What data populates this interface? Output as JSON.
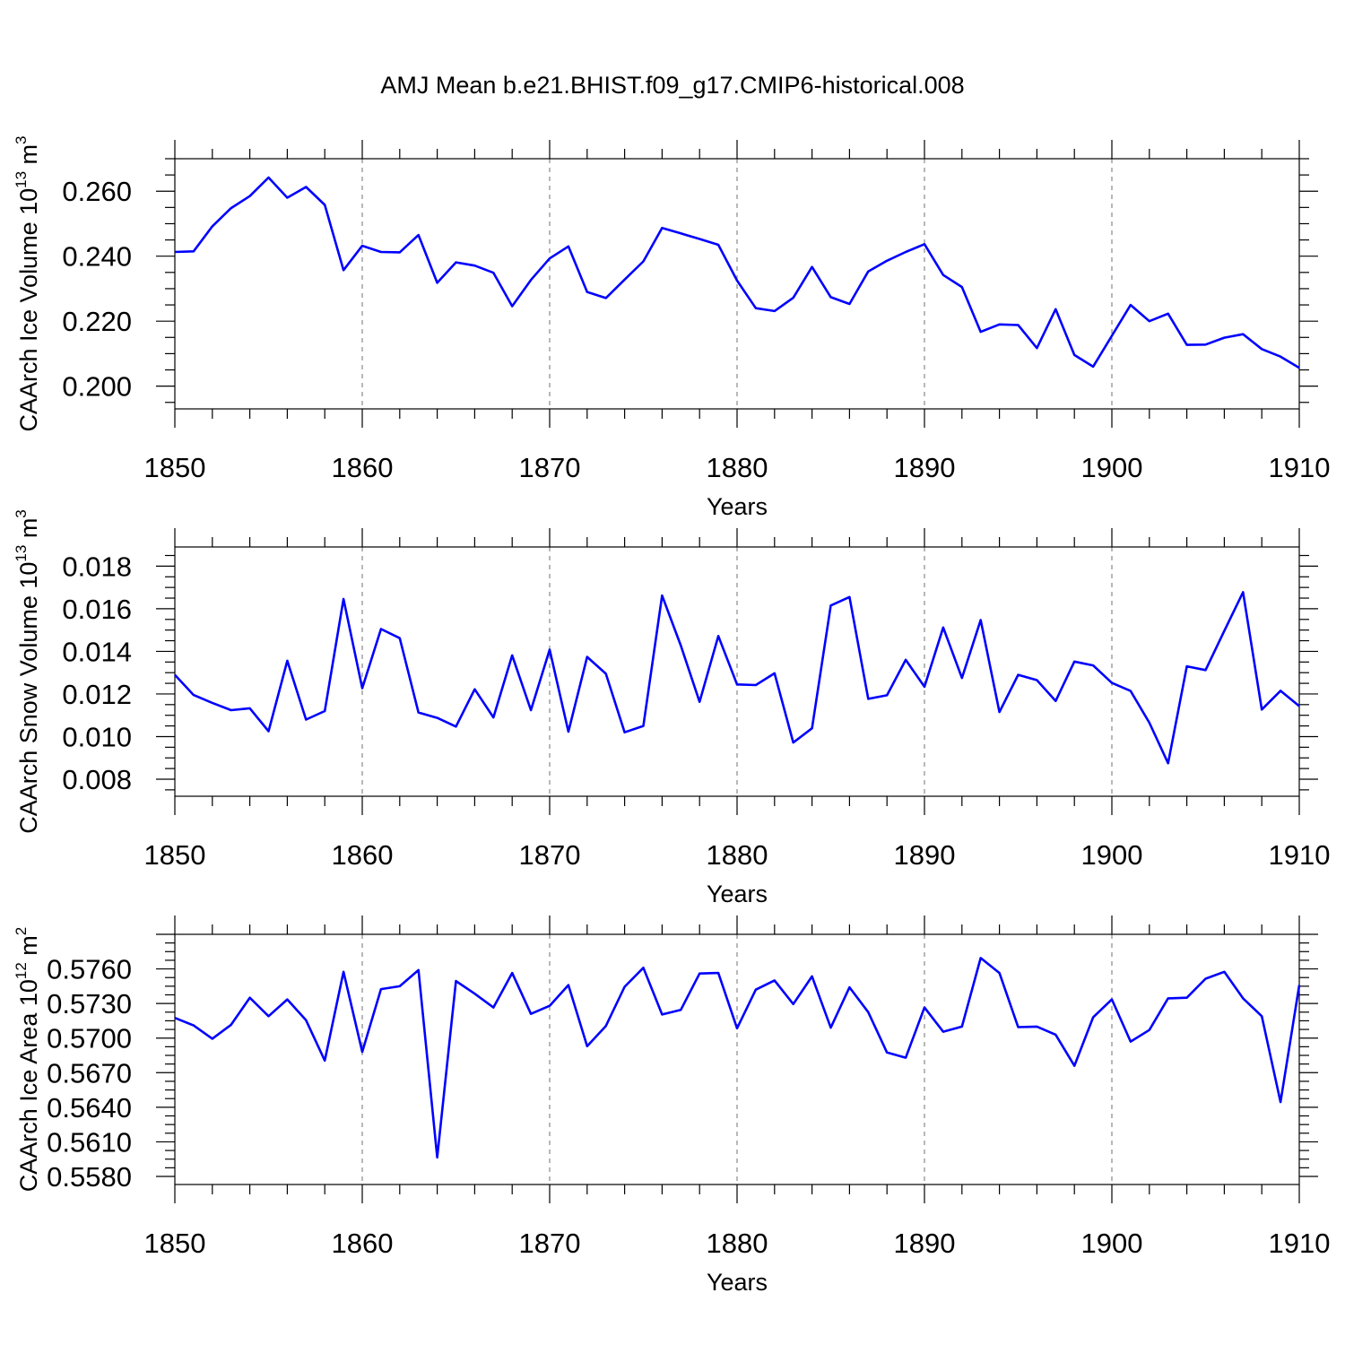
{
  "title": "AMJ Mean b.e21.BHIST.f09_g17.CMIP6-historical.008",
  "colors": {
    "series": "#0000ff",
    "grid": "#888888",
    "frame": "#000000"
  },
  "chart_data": [
    {
      "type": "line",
      "ylabel": {
        "main": "CAArch Ice Volume 10",
        "exp": "13",
        "unit": " m",
        "unit_exp": "3"
      },
      "xlabel": "Years",
      "xlim": [
        1850,
        1910
      ],
      "ylim": [
        0.193,
        0.27
      ],
      "yticks": [
        0.2,
        0.22,
        0.24,
        0.26
      ],
      "ytick_labels": [
        "0.200",
        "0.220",
        "0.240",
        "0.260"
      ],
      "xticks": [
        1850,
        1860,
        1870,
        1880,
        1890,
        1900,
        1910
      ],
      "xtick_labels": [
        "1850",
        "1860",
        "1870",
        "1880",
        "1890",
        "1900",
        "1910"
      ],
      "grid_x": [
        1860,
        1870,
        1880,
        1890,
        1900
      ],
      "x": [
        1850,
        1851,
        1852,
        1853,
        1854,
        1855,
        1856,
        1857,
        1858,
        1859,
        1860,
        1861,
        1862,
        1863,
        1864,
        1865,
        1866,
        1867,
        1868,
        1869,
        1870,
        1871,
        1872,
        1873,
        1874,
        1875,
        1876,
        1877,
        1878,
        1879,
        1880,
        1881,
        1882,
        1883,
        1884,
        1885,
        1886,
        1887,
        1888,
        1889,
        1890,
        1891,
        1892,
        1893,
        1894,
        1895,
        1896,
        1897,
        1898,
        1899,
        1900,
        1901,
        1902,
        1903,
        1904,
        1905,
        1906,
        1907,
        1908,
        1909,
        1910
      ],
      "y": [
        0.2413,
        0.2415,
        0.2492,
        0.2548,
        0.2585,
        0.2642,
        0.258,
        0.2613,
        0.2558,
        0.2357,
        0.2432,
        0.2413,
        0.2412,
        0.2465,
        0.2318,
        0.2381,
        0.2371,
        0.2349,
        0.2246,
        0.2327,
        0.2393,
        0.243,
        0.229,
        0.2271,
        0.2328,
        0.2384,
        0.2487,
        0.247,
        0.2453,
        0.2435,
        0.2325,
        0.224,
        0.2231,
        0.2272,
        0.2367,
        0.2274,
        0.2253,
        0.2353,
        0.2386,
        0.2413,
        0.2437,
        0.2342,
        0.2305,
        0.2167,
        0.219,
        0.2188,
        0.2117,
        0.2237,
        0.2096,
        0.206,
        0.2155,
        0.225,
        0.22,
        0.2223,
        0.2127,
        0.2128,
        0.2149,
        0.216,
        0.2114,
        0.2091,
        0.2056
      ]
    },
    {
      "type": "line",
      "ylabel": {
        "main": "CAArch Snow Volume 10",
        "exp": "13",
        "unit": " m",
        "unit_exp": "3"
      },
      "xlabel": "Years",
      "xlim": [
        1850,
        1910
      ],
      "ylim": [
        0.0072,
        0.0189
      ],
      "yticks": [
        0.008,
        0.01,
        0.012,
        0.014,
        0.016,
        0.018
      ],
      "ytick_labels": [
        "0.008",
        "0.010",
        "0.012",
        "0.014",
        "0.016",
        "0.018"
      ],
      "xticks": [
        1850,
        1860,
        1870,
        1880,
        1890,
        1900,
        1910
      ],
      "xtick_labels": [
        "1850",
        "1860",
        "1870",
        "1880",
        "1890",
        "1900",
        "1910"
      ],
      "grid_x": [
        1860,
        1870,
        1880,
        1890,
        1900
      ],
      "x": [
        1850,
        1851,
        1852,
        1853,
        1854,
        1855,
        1856,
        1857,
        1858,
        1859,
        1860,
        1861,
        1862,
        1863,
        1864,
        1865,
        1866,
        1867,
        1868,
        1869,
        1870,
        1871,
        1872,
        1873,
        1874,
        1875,
        1876,
        1877,
        1878,
        1879,
        1880,
        1881,
        1882,
        1883,
        1884,
        1885,
        1886,
        1887,
        1888,
        1889,
        1890,
        1891,
        1892,
        1893,
        1894,
        1895,
        1896,
        1897,
        1898,
        1899,
        1900,
        1901,
        1902,
        1903,
        1904,
        1905,
        1906,
        1907,
        1908,
        1909,
        1910
      ],
      "y": [
        0.0129,
        0.01195,
        0.01158,
        0.01124,
        0.01133,
        0.01025,
        0.01356,
        0.0108,
        0.0112,
        0.01646,
        0.01227,
        0.01505,
        0.01462,
        0.01113,
        0.01088,
        0.01047,
        0.01222,
        0.0109,
        0.01381,
        0.01124,
        0.01408,
        0.01023,
        0.01374,
        0.01295,
        0.0102,
        0.0105,
        0.01662,
        0.01427,
        0.01163,
        0.01472,
        0.01245,
        0.01242,
        0.01297,
        0.00972,
        0.01039,
        0.01615,
        0.01655,
        0.01177,
        0.01194,
        0.0136,
        0.01234,
        0.01512,
        0.01275,
        0.01547,
        0.01115,
        0.0129,
        0.01265,
        0.01167,
        0.01352,
        0.01334,
        0.01252,
        0.01214,
        0.01065,
        0.00875,
        0.0133,
        0.01312,
        0.01496,
        0.01678,
        0.01127,
        0.01215,
        0.01143
      ]
    },
    {
      "type": "line",
      "ylabel": {
        "main": "CAArch Ice Area 10",
        "exp": "12",
        "unit": " m",
        "unit_exp": "2"
      },
      "xlabel": "Years",
      "xlim": [
        1850,
        1910
      ],
      "ylim": [
        0.5573,
        0.579
      ],
      "yticks": [
        0.558,
        0.561,
        0.564,
        0.567,
        0.57,
        0.573,
        0.576
      ],
      "ytick_labels": [
        "0.5580",
        "0.5610",
        "0.5640",
        "0.5670",
        "0.5700",
        "0.5730",
        "0.5760"
      ],
      "xticks": [
        1850,
        1860,
        1870,
        1880,
        1890,
        1900,
        1910
      ],
      "xtick_labels": [
        "1850",
        "1860",
        "1870",
        "1880",
        "1890",
        "1900",
        "1910"
      ],
      "grid_x": [
        1860,
        1870,
        1880,
        1890,
        1900
      ],
      "x": [
        1850,
        1851,
        1852,
        1853,
        1854,
        1855,
        1856,
        1857,
        1858,
        1859,
        1860,
        1861,
        1862,
        1863,
        1864,
        1865,
        1866,
        1867,
        1868,
        1869,
        1870,
        1871,
        1872,
        1873,
        1874,
        1875,
        1876,
        1877,
        1878,
        1879,
        1880,
        1881,
        1882,
        1883,
        1884,
        1885,
        1886,
        1887,
        1888,
        1889,
        1890,
        1891,
        1892,
        1893,
        1894,
        1895,
        1896,
        1897,
        1898,
        1899,
        1900,
        1901,
        1902,
        1903,
        1904,
        1905,
        1906,
        1907,
        1908,
        1909,
        1910
      ],
      "y": [
        0.57175,
        0.5711,
        0.56995,
        0.57115,
        0.5735,
        0.5719,
        0.57335,
        0.57155,
        0.56805,
        0.57575,
        0.5688,
        0.57425,
        0.5745,
        0.5759,
        0.55965,
        0.57495,
        0.57385,
        0.57265,
        0.57565,
        0.5721,
        0.5728,
        0.5746,
        0.5693,
        0.57105,
        0.57445,
        0.5761,
        0.57205,
        0.57245,
        0.5756,
        0.57565,
        0.57085,
        0.5742,
        0.575,
        0.57295,
        0.57535,
        0.5709,
        0.5744,
        0.57225,
        0.56875,
        0.5683,
        0.57265,
        0.57055,
        0.571,
        0.57695,
        0.57565,
        0.57095,
        0.571,
        0.5703,
        0.5676,
        0.5718,
        0.57335,
        0.5697,
        0.5707,
        0.57345,
        0.5735,
        0.57515,
        0.57575,
        0.57345,
        0.5719,
        0.56445,
        0.5746
      ]
    }
  ]
}
